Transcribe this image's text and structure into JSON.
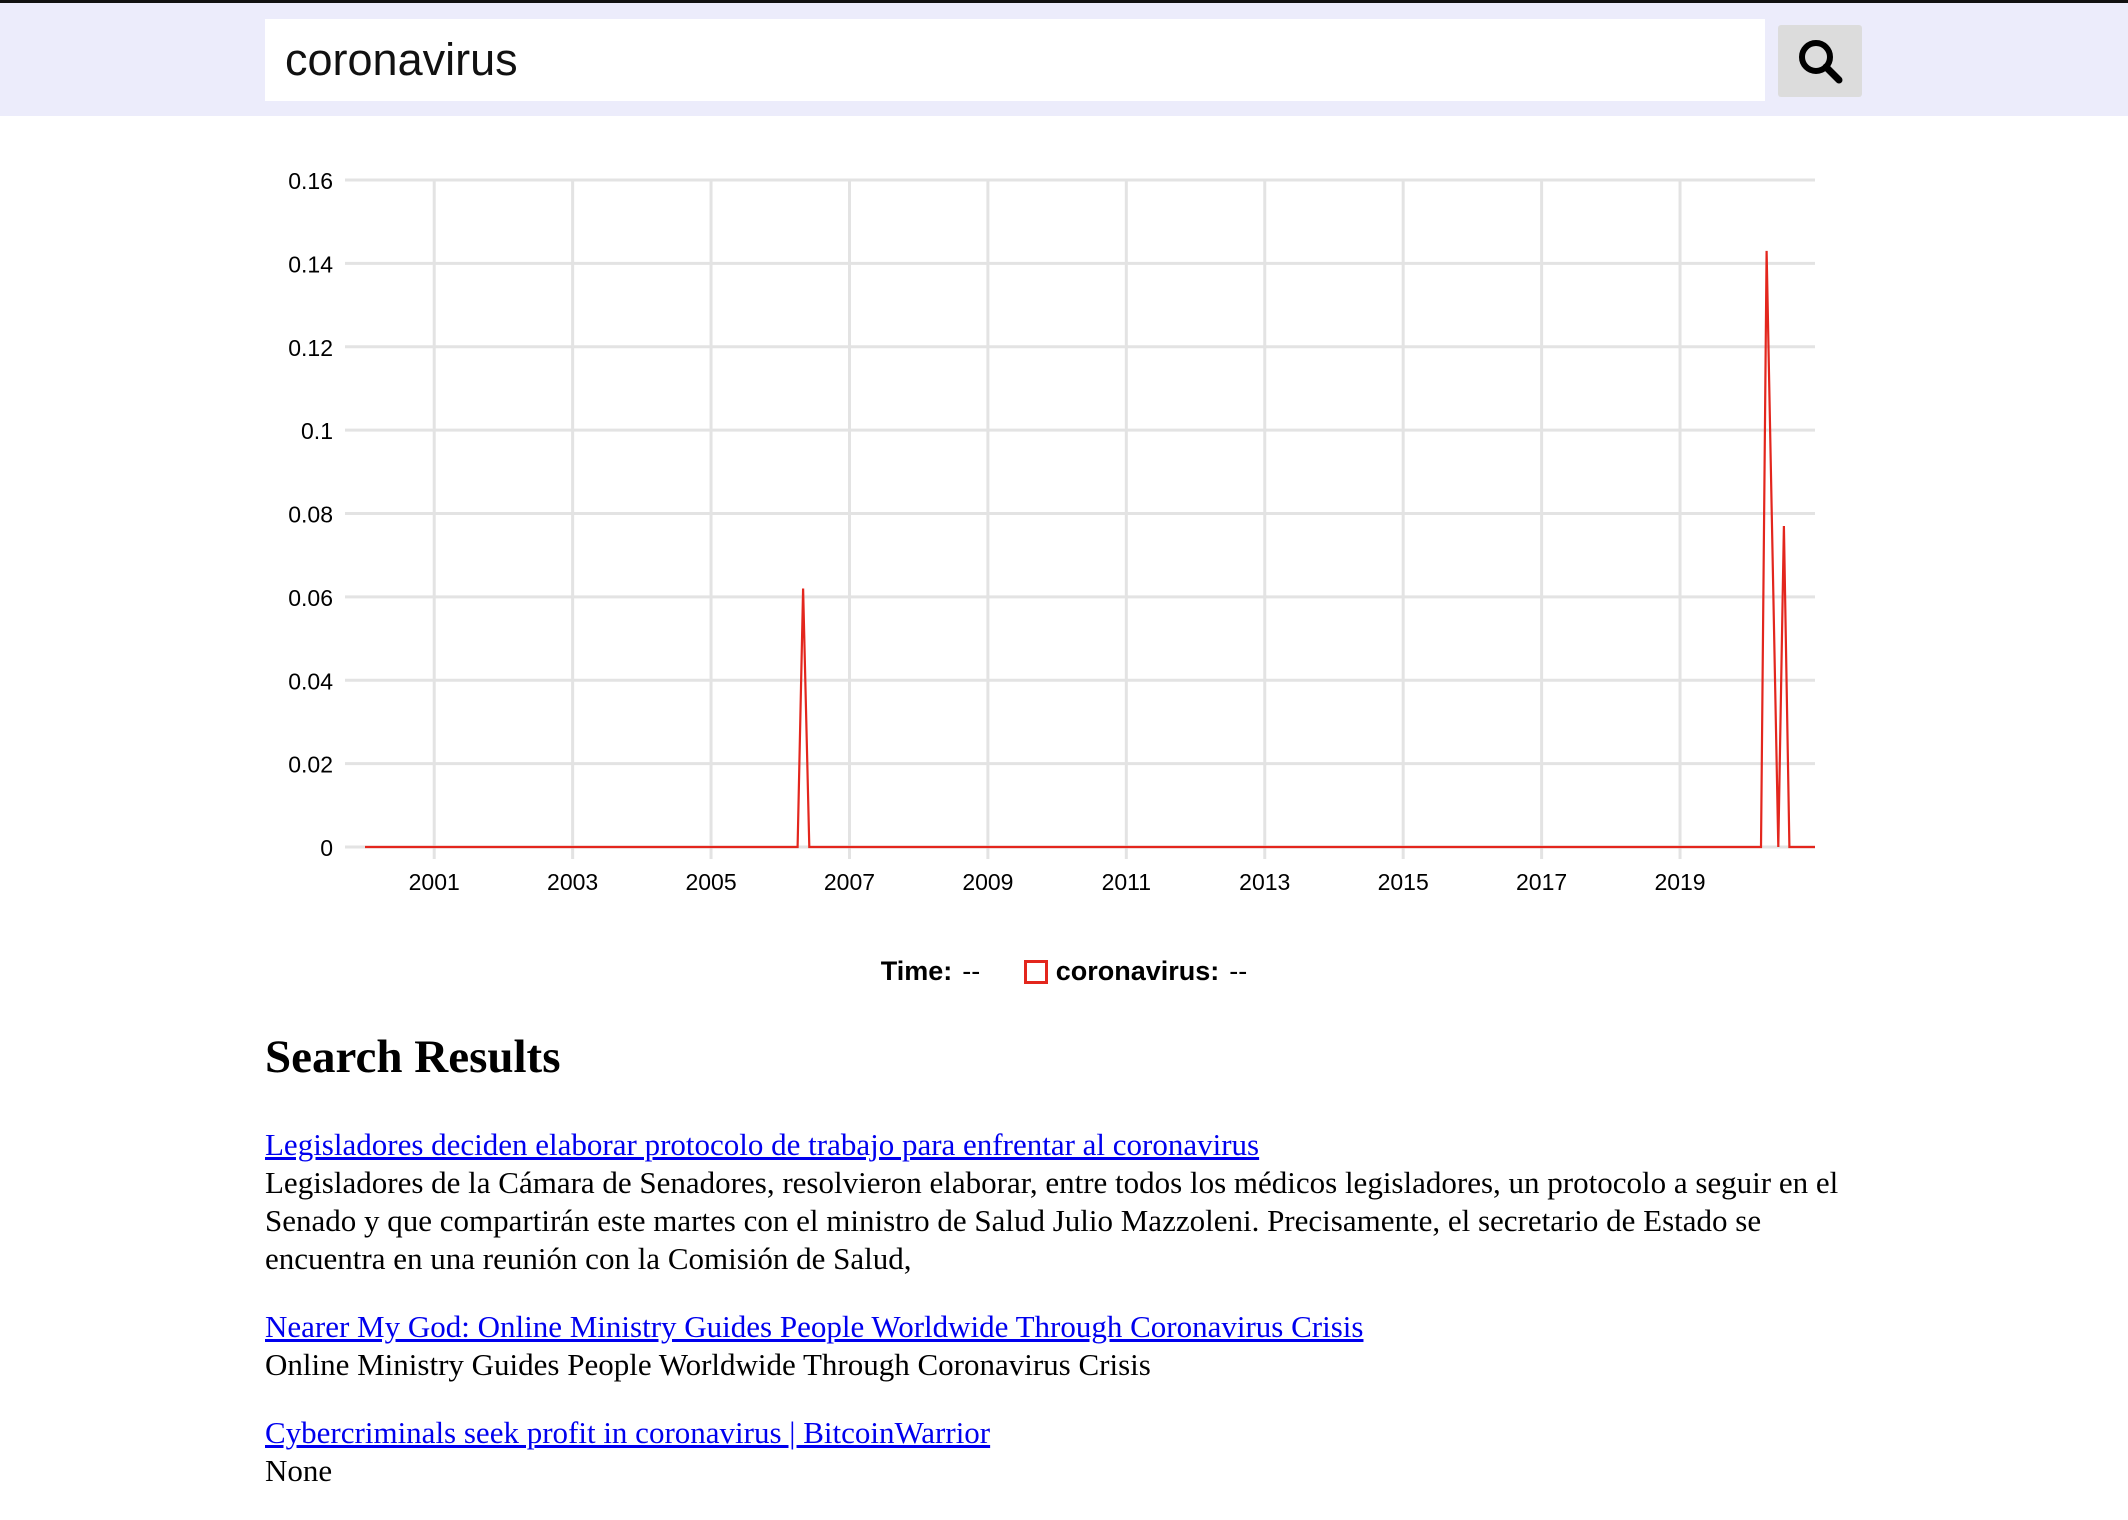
{
  "search": {
    "query": "coronavirus",
    "button_icon": "search-icon"
  },
  "chart_data": {
    "type": "line",
    "color": "#e3261d",
    "ylim": [
      0,
      0.16
    ],
    "yticks": [
      "0",
      "0.02",
      "0.04",
      "0.06",
      "0.08",
      "0.1",
      "0.12",
      "0.14",
      "0.16"
    ],
    "xlim": [
      2000.0,
      2020.95
    ],
    "xticks": [
      "2001",
      "2003",
      "2005",
      "2007",
      "2009",
      "2011",
      "2013",
      "2015",
      "2017",
      "2019"
    ],
    "grid": true,
    "series": [
      {
        "name": "coronavirus",
        "x": [
          2000.0,
          2006.25,
          2006.33,
          2006.42,
          2020.17,
          2020.25,
          2020.42,
          2020.5,
          2020.58,
          2020.95
        ],
        "y": [
          0,
          0,
          0.062,
          0,
          0,
          0.143,
          0,
          0.077,
          0,
          0
        ]
      }
    ]
  },
  "legend": {
    "time_label": "Time:",
    "time_value": "--",
    "series_label": "coronavirus:",
    "series_value": "--"
  },
  "results": {
    "heading": "Search Results",
    "items": [
      {
        "title": "Legisladores deciden elaborar protocolo de trabajo para enfrentar al coronavirus",
        "snippet": "Legisladores de la Cámara de Senadores, resolvieron elaborar, entre todos los médicos legisladores, un protocolo a seguir en el Senado y que compartirán este martes con el ministro de Salud Julio Mazzoleni. Precisamente, el secretario de Estado se encuentra en una reunión con la Comisión de Salud,"
      },
      {
        "title": "Nearer My God: Online Ministry Guides People Worldwide Through Coronavirus Crisis",
        "snippet": "Online Ministry Guides People Worldwide Through Coronavirus Crisis"
      },
      {
        "title": "Cybercriminals seek profit in coronavirus | BitcoinWarrior",
        "snippet": "None"
      }
    ]
  }
}
